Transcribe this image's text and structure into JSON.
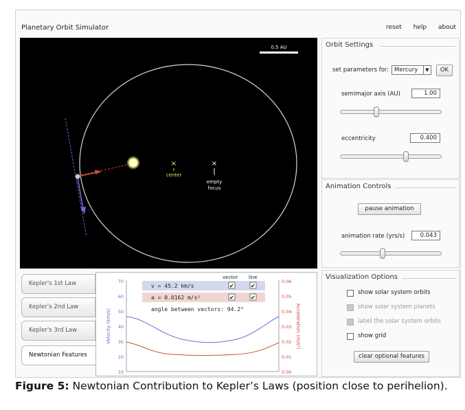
{
  "app": {
    "title": "Planetary Orbit Simulator",
    "links": [
      "reset",
      "help",
      "about"
    ]
  },
  "orbit_view": {
    "scale_label": "0.5 AU",
    "center_label": "center",
    "empty_focus_label_1": "empty",
    "empty_focus_label_2": "focus",
    "marker_glyph": "×"
  },
  "orbit_settings": {
    "title": "Orbit Settings",
    "set_params_label": "set parameters for:",
    "planet_select": "Mercury",
    "ok_label": "OK",
    "semimajor_label": "semimajor axis (AU)",
    "semimajor_value": "1.00",
    "semimajor_slider_fraction": 0.36,
    "eccentricity_label": "eccentricity",
    "eccentricity_value": "0.400",
    "eccentricity_slider_fraction": 0.65
  },
  "animation_controls": {
    "title": "Animation Controls",
    "pause_label": "pause animation",
    "rate_label": "animation rate (yrs/s)",
    "rate_value": "0.043",
    "rate_slider_fraction": 0.42
  },
  "visualization_options": {
    "title": "Visualization Options",
    "options": [
      {
        "label": "show solar system orbits",
        "checked": false,
        "enabled": true
      },
      {
        "label": "show solar system planets",
        "checked": false,
        "enabled": false
      },
      {
        "label": "label the solar system orbits",
        "checked": false,
        "enabled": false
      },
      {
        "label": "show grid",
        "checked": false,
        "enabled": true
      }
    ],
    "clear_label": "clear optional features"
  },
  "tabs": [
    {
      "label": "Kepler's 1st Law",
      "active": false
    },
    {
      "label": "Kepler's 2nd Law",
      "active": false
    },
    {
      "label": "Kepler's 3rd Law",
      "active": false
    },
    {
      "label": "Newtonian Features",
      "active": true
    }
  ],
  "newtonian": {
    "col_vector": "vector",
    "col_line": "line",
    "velocity_text": "v = 45.2 km/s",
    "accel_text": "a = 0.0162 m/s²",
    "angle_text": "angle between vectors: 94.2°",
    "left_axis_label": "Velocity (km/s)",
    "right_axis_label": "Acceleration (m/s²)",
    "left_ticks": [
      "70",
      "60",
      "50",
      "40",
      "30",
      "20",
      "10"
    ],
    "right_ticks": [
      "0.06",
      "0.05",
      "0.04",
      "0.03",
      "0.02",
      "0.01",
      "0.00"
    ],
    "check_mark": "✔"
  },
  "colors": {
    "velocity": "#6b6bd6",
    "acceleration": "#cc4a3a",
    "sun": "#ffffb0",
    "orbit": "#d8d8d8",
    "marker": "#f0e070"
  },
  "caption": {
    "figure_label": "Figure 5:",
    "text": " Newtonian Contribution to Kepler’s Laws (position close to perihelion)."
  }
}
